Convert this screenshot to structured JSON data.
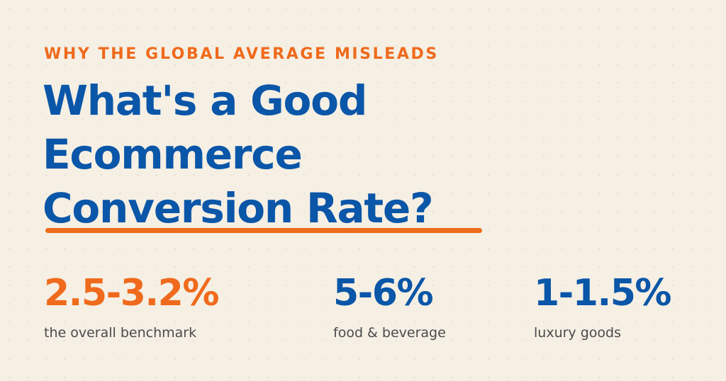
{
  "colors": {
    "background": "#f5efe4",
    "orange": "#ef6a1c",
    "blue": "#0a56a8",
    "gray": "#4b4b4b"
  },
  "header": {
    "eyebrow": "WHY THE GLOBAL AVERAGE MISLEADS",
    "title_lines": [
      "What's a Good",
      "Ecommerce",
      "Conversion Rate?"
    ]
  },
  "stats": [
    {
      "value": "2.5-3.2%",
      "label": "the overall benchmark",
      "color": "#ef6a1c"
    },
    {
      "value": "5-6%",
      "label": "food & beverage",
      "color": "#0a56a8"
    },
    {
      "value": "1-1.5%",
      "label": "luxury goods",
      "color": "#0a56a8"
    }
  ]
}
